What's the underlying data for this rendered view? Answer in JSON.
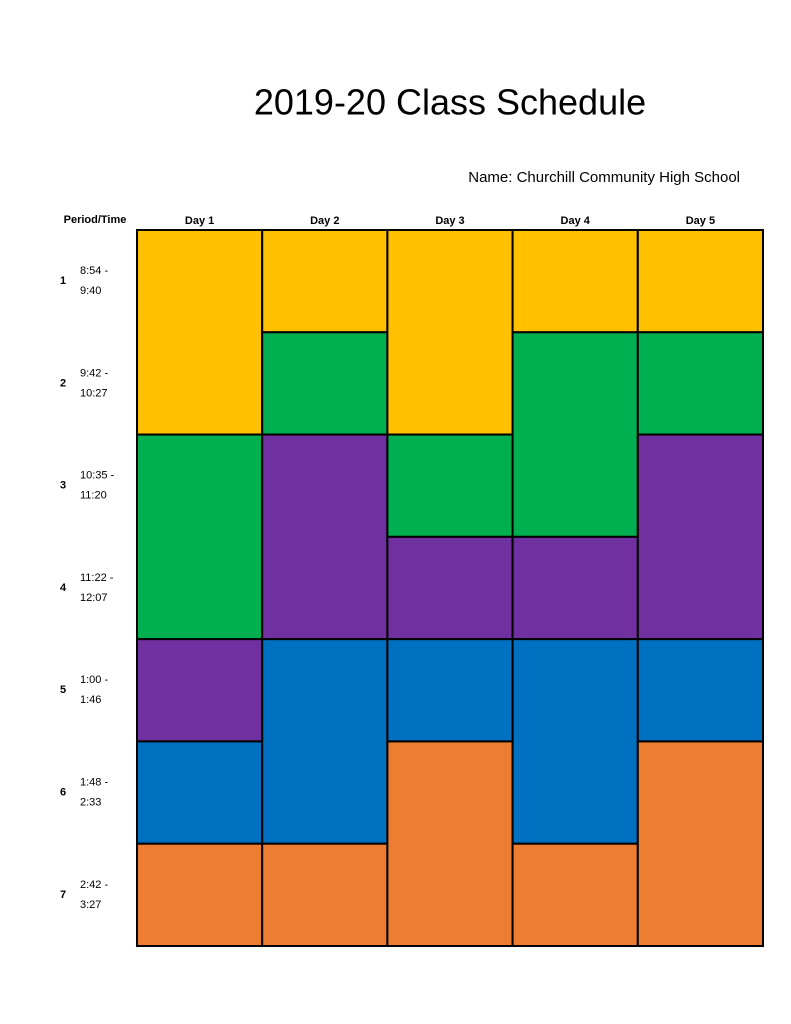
{
  "header": {
    "title": "2019-20 Class Schedule",
    "name": "Name: Churchill Community High School"
  },
  "table": {
    "period_header": "Period/Time",
    "periods": [
      {
        "number": "1",
        "time": [
          "8:54 -",
          "9:40"
        ]
      },
      {
        "number": "2",
        "time": [
          "9:42 -",
          "10:27"
        ]
      },
      {
        "number": "3",
        "time": [
          "10:35 -",
          "11:20"
        ]
      },
      {
        "number": "4",
        "time": [
          "11:22 -",
          "12:07"
        ]
      },
      {
        "number": "5",
        "time": [
          "1:00 -",
          "1:46"
        ]
      },
      {
        "number": "6",
        "time": [
          "1:48 -",
          "2:33"
        ]
      },
      {
        "number": "7",
        "time": [
          "2:42 -",
          "3:27"
        ]
      }
    ],
    "days": [
      {
        "label": "Day 1",
        "blocks": [
          {
            "span": 2,
            "color": "#ffc000"
          },
          {
            "span": 2,
            "color": "#00b050"
          },
          {
            "span": 1,
            "color": "#7030a0"
          },
          {
            "span": 1,
            "color": "#0070c0"
          },
          {
            "span": 1,
            "color": "#ed7d31"
          }
        ]
      },
      {
        "label": "Day 2",
        "blocks": [
          {
            "span": 1,
            "color": "#ffc000"
          },
          {
            "span": 1,
            "color": "#00b050"
          },
          {
            "span": 2,
            "color": "#7030a0"
          },
          {
            "span": 2,
            "color": "#0070c0"
          },
          {
            "span": 1,
            "color": "#ed7d31"
          }
        ]
      },
      {
        "label": "Day 3",
        "blocks": [
          {
            "span": 2,
            "color": "#ffc000"
          },
          {
            "span": 1,
            "color": "#00b050"
          },
          {
            "span": 1,
            "color": "#7030a0"
          },
          {
            "span": 1,
            "color": "#0070c0"
          },
          {
            "span": 2,
            "color": "#ed7d31"
          }
        ]
      },
      {
        "label": "Day 4",
        "blocks": [
          {
            "span": 1,
            "color": "#ffc000"
          },
          {
            "span": 2,
            "color": "#00b050"
          },
          {
            "span": 1,
            "color": "#7030a0"
          },
          {
            "span": 2,
            "color": "#0070c0"
          },
          {
            "span": 1,
            "color": "#ed7d31"
          }
        ]
      },
      {
        "label": "Day 5",
        "blocks": [
          {
            "span": 1,
            "color": "#ffc000"
          },
          {
            "span": 1,
            "color": "#00b050"
          },
          {
            "span": 2,
            "color": "#7030a0"
          },
          {
            "span": 1,
            "color": "#0070c0"
          },
          {
            "span": 2,
            "color": "#ed7d31"
          }
        ]
      }
    ]
  }
}
